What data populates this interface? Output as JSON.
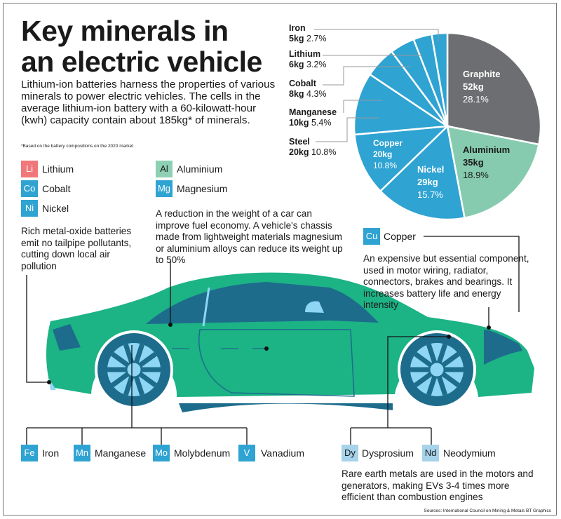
{
  "title": [
    "Key minerals in",
    "an electric vehicle"
  ],
  "intro": "Lithium-ion batteries harness the properties of various minerals to power electric vehicles. The cells in the average lithium-ion battery with a 60-kilowatt-hour (kwh) capacity contain about 185kg* of minerals.",
  "footnote": "*Based on the battery compositions on the 2020 market",
  "battery_group": {
    "chips": [
      {
        "sym": "Li",
        "name": "Lithium",
        "color": "#f0787a"
      },
      {
        "sym": "Co",
        "name": "Cobalt",
        "color": "#2fa3d2"
      },
      {
        "sym": "Ni",
        "name": "Nickel",
        "color": "#2fa3d2"
      }
    ],
    "text": "Rich metal-oxide batteries emit no tailpipe pollutants, cutting down local air pollution"
  },
  "chassis_group": {
    "chips": [
      {
        "sym": "Al",
        "name": "Aluminium",
        "color": "#8ed0b4"
      },
      {
        "sym": "Mg",
        "name": "Magnesium",
        "color": "#2fa3d2"
      }
    ],
    "text": "A reduction in the weight of a car can improve fuel economy. A vehicle's chassis made from lightweight materials magnesium or aluminium alloys can reduce its weight up to 50%"
  },
  "copper_group": {
    "chip": {
      "sym": "Cu",
      "name": "Copper"
    },
    "text": "An expensive but essential component, used in motor wiring, radiator, connectors, brakes and bearings. It increases battery life and energy intensity"
  },
  "steel_group": {
    "chips": [
      {
        "sym": "Fe",
        "name": "Iron"
      },
      {
        "sym": "Mn",
        "name": "Manganese"
      },
      {
        "sym": "Mo",
        "name": "Molybdenum"
      },
      {
        "sym": "V",
        "name": "Vanadium"
      }
    ]
  },
  "rare_earth_group": {
    "chips": [
      {
        "sym": "Dy",
        "name": "Dysprosium"
      },
      {
        "sym": "Nd",
        "name": "Neodymium"
      }
    ],
    "text": "Rare earth metals are used in the motors and generators, making EVs 3-4 times more efficient than combustion engines"
  },
  "sources": "Sources: International Council on Mining & Metals    BT Graphics",
  "chart_data": {
    "type": "pie",
    "unit": "kg",
    "start": "12 o'clock, clockwise",
    "slices": [
      {
        "name": "Graphite",
        "kg": "52kg",
        "pct": "28.1%",
        "value": 28.1,
        "color": "#6d6e71"
      },
      {
        "name": "Aluminium",
        "kg": "35kg",
        "pct": "18.9%",
        "value": 18.9,
        "color": "#86cbb0"
      },
      {
        "name": "Nickel",
        "kg": "29kg",
        "pct": "15.7%",
        "value": 15.7,
        "color": "#2fa3d2"
      },
      {
        "name": "Copper",
        "kg": "20kg",
        "pct": "10.8%",
        "value": 10.8,
        "color": "#2fa3d2"
      },
      {
        "name": "Steel",
        "kg": "20kg",
        "pct": "10.8%",
        "value": 10.8,
        "color": "#2fa3d2"
      },
      {
        "name": "Manganese",
        "kg": "10kg",
        "pct": "5.4%",
        "value": 5.4,
        "color": "#2fa3d2"
      },
      {
        "name": "Cobalt",
        "kg": "8kg",
        "pct": "4.3%",
        "value": 4.3,
        "color": "#2fa3d2"
      },
      {
        "name": "Lithium",
        "kg": "6kg",
        "pct": "3.2%",
        "value": 3.2,
        "color": "#2fa3d2"
      },
      {
        "name": "Iron",
        "kg": "5kg",
        "pct": "2.7%",
        "value": 2.7,
        "color": "#2fa3d2"
      }
    ]
  },
  "colors": {
    "car_body": "#1cb385",
    "car_dark": "#1d6c8c",
    "glass": "#8fd6f5"
  }
}
